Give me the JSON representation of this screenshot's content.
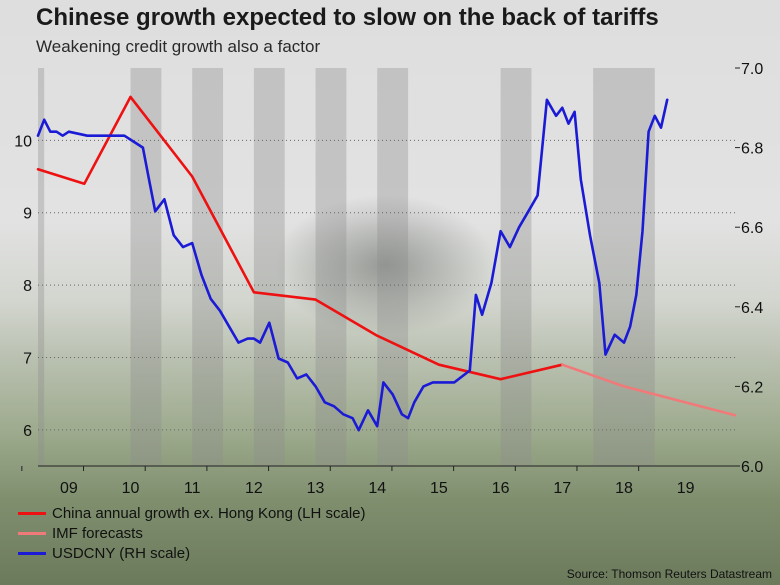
{
  "title": "Chinese growth expected to slow on the back of tariffs",
  "subtitle": "Weakening credit growth also a factor",
  "source": "Source: Thomson Reuters Datastream",
  "colors": {
    "growth": "#ee1111",
    "imf": "#f07a7a",
    "usdcny": "#1b1bd6",
    "band": "#8c8c8c"
  },
  "legend": [
    {
      "label": "China annual growth ex. Hong Kong (LH scale)",
      "color": "#ee1111"
    },
    {
      "label": "IMF forecasts",
      "color": "#f07a7a"
    },
    {
      "label": "USDCNY (RH scale)",
      "color": "#1b1bd6"
    }
  ],
  "chart_data": {
    "type": "line",
    "x_range": [
      2008.5,
      2019.8
    ],
    "x_tick_labels": [
      "09",
      "10",
      "11",
      "12",
      "13",
      "14",
      "15",
      "16",
      "17",
      "18",
      "19"
    ],
    "x_tick_years": [
      2009,
      2010,
      2011,
      2012,
      2013,
      2014,
      2015,
      2016,
      2017,
      2018,
      2019
    ],
    "shaded_years": [
      2008.5,
      2010,
      2011,
      2012,
      2013,
      2014,
      2016,
      2017.5
    ],
    "y_left": {
      "range": [
        5.5,
        11
      ],
      "ticks": [
        6,
        7,
        8,
        9,
        10
      ]
    },
    "y_right": {
      "range": [
        6.0,
        7.0
      ],
      "ticks": [
        "6.0",
        "6.2",
        "6.4",
        "6.6",
        "6.8",
        "7.0"
      ]
    },
    "series": [
      {
        "name": "China annual growth ex. Hong Kong (LH scale)",
        "axis": "left",
        "x": [
          2008.5,
          2009.25,
          2010.0,
          2011.0,
          2012.0,
          2013.0,
          2014.0,
          2015.0,
          2016.0,
          2017.0
        ],
        "y": [
          9.6,
          9.4,
          10.6,
          9.5,
          7.9,
          7.8,
          7.3,
          6.9,
          6.7,
          6.9
        ]
      },
      {
        "name": "IMF forecasts",
        "axis": "left",
        "x": [
          2017.0,
          2018.0,
          2019.8
        ],
        "y": [
          6.9,
          6.6,
          6.2
        ]
      },
      {
        "name": "USDCNY (RH scale)",
        "axis": "right",
        "x": [
          2008.5,
          2008.6,
          2008.7,
          2008.8,
          2008.9,
          2009.0,
          2009.3,
          2009.6,
          2009.9,
          2010.0,
          2010.2,
          2010.3,
          2010.4,
          2010.55,
          2010.7,
          2010.85,
          2011.0,
          2011.15,
          2011.3,
          2011.45,
          2011.6,
          2011.75,
          2011.9,
          2012.0,
          2012.1,
          2012.25,
          2012.4,
          2012.55,
          2012.7,
          2012.85,
          2013.0,
          2013.15,
          2013.3,
          2013.45,
          2013.6,
          2013.7,
          2013.85,
          2014.0,
          2014.1,
          2014.25,
          2014.4,
          2014.5,
          2014.6,
          2014.75,
          2014.9,
          2015.0,
          2015.25,
          2015.5,
          2015.6,
          2015.7,
          2015.85,
          2016.0,
          2016.15,
          2016.3,
          2016.45,
          2016.6,
          2016.75,
          2016.9,
          2017.0,
          2017.1,
          2017.2,
          2017.3,
          2017.45,
          2017.6,
          2017.7,
          2017.85,
          2018.0,
          2018.1,
          2018.2,
          2018.3,
          2018.4,
          2018.5,
          2018.6,
          2018.7
        ],
        "y": [
          6.83,
          6.87,
          6.84,
          6.84,
          6.83,
          6.84,
          6.83,
          6.83,
          6.83,
          6.82,
          6.8,
          6.72,
          6.64,
          6.67,
          6.58,
          6.55,
          6.56,
          6.48,
          6.42,
          6.39,
          6.35,
          6.31,
          6.32,
          6.32,
          6.31,
          6.36,
          6.27,
          6.26,
          6.22,
          6.23,
          6.2,
          6.16,
          6.15,
          6.13,
          6.12,
          6.09,
          6.14,
          6.1,
          6.21,
          6.18,
          6.13,
          6.12,
          6.16,
          6.2,
          6.21,
          6.21,
          6.21,
          6.24,
          6.43,
          6.38,
          6.46,
          6.59,
          6.55,
          6.6,
          6.64,
          6.68,
          6.92,
          6.88,
          6.9,
          6.86,
          6.89,
          6.72,
          6.58,
          6.46,
          6.28,
          6.33,
          6.31,
          6.35,
          6.43,
          6.59,
          6.84,
          6.88,
          6.85,
          6.92
        ]
      }
    ]
  }
}
